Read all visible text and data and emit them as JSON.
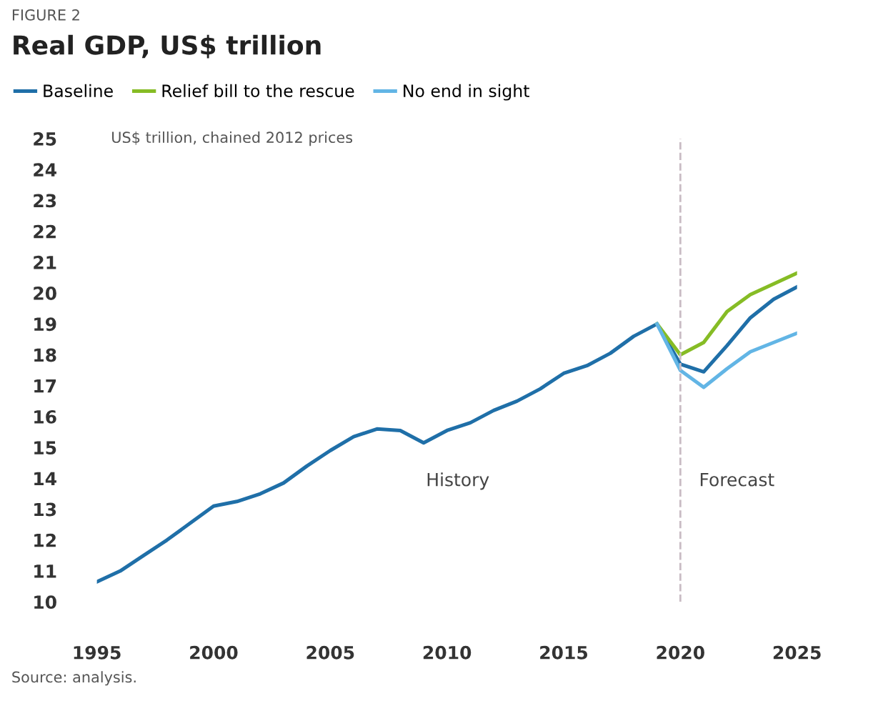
{
  "chart_data": {
    "type": "line",
    "title": "Real GDP, US$ trillion",
    "ylabel": "US$ trillion, chained 2012 prices",
    "annotations": [
      "FIGURE 2",
      "History",
      "Forecast",
      "Source: analysis."
    ],
    "series": [
      {
        "name": "Baseline",
        "color": "#1f6fa8",
        "x": [
          1995,
          1996,
          1997,
          1998,
          1999,
          2000,
          2001,
          2002,
          2003,
          2004,
          2005,
          2006,
          2007,
          2008,
          2009,
          2010,
          2011,
          2012,
          2013,
          2014,
          2015,
          2016,
          2017,
          2018,
          2019,
          2020,
          2021,
          2022,
          2023,
          2024,
          2025
        ],
        "values": [
          10.65,
          11.0,
          11.5,
          12.0,
          12.55,
          13.1,
          13.25,
          13.5,
          13.85,
          14.4,
          14.9,
          15.35,
          15.6,
          15.55,
          15.15,
          15.55,
          15.8,
          16.2,
          16.5,
          16.9,
          17.4,
          17.65,
          18.05,
          18.6,
          19.0,
          17.7,
          17.45,
          18.3,
          19.2,
          19.8,
          20.2
        ]
      },
      {
        "name": "Relief bill to the rescue",
        "color": "#86bc25",
        "x": [
          2019,
          2020,
          2021,
          2022,
          2023,
          2024,
          2025
        ],
        "values": [
          19.0,
          18.0,
          18.4,
          19.4,
          19.95,
          20.3,
          20.65
        ]
      },
      {
        "name": "No end in sight",
        "color": "#62b5e5",
        "x": [
          2019,
          2020,
          2021,
          2022,
          2023,
          2024,
          2025
        ],
        "values": [
          19.0,
          17.5,
          16.95,
          17.55,
          18.1,
          18.4,
          18.7
        ]
      }
    ],
    "xlim": [
      1995,
      2025
    ],
    "xticks": [
      1995,
      2000,
      2005,
      2010,
      2015,
      2020,
      2025
    ],
    "ylim": [
      10,
      25
    ],
    "yticks": [
      10,
      11,
      12,
      13,
      14,
      15,
      16,
      17,
      18,
      19,
      20,
      21,
      22,
      23,
      24,
      25
    ],
    "ref_lines": [
      {
        "axis": "x",
        "value": 2020,
        "color": "#c9bcc4",
        "line_style": "dashed"
      }
    ],
    "legend": "top left",
    "grid": false,
    "marker": "none",
    "line_style": "solid"
  }
}
